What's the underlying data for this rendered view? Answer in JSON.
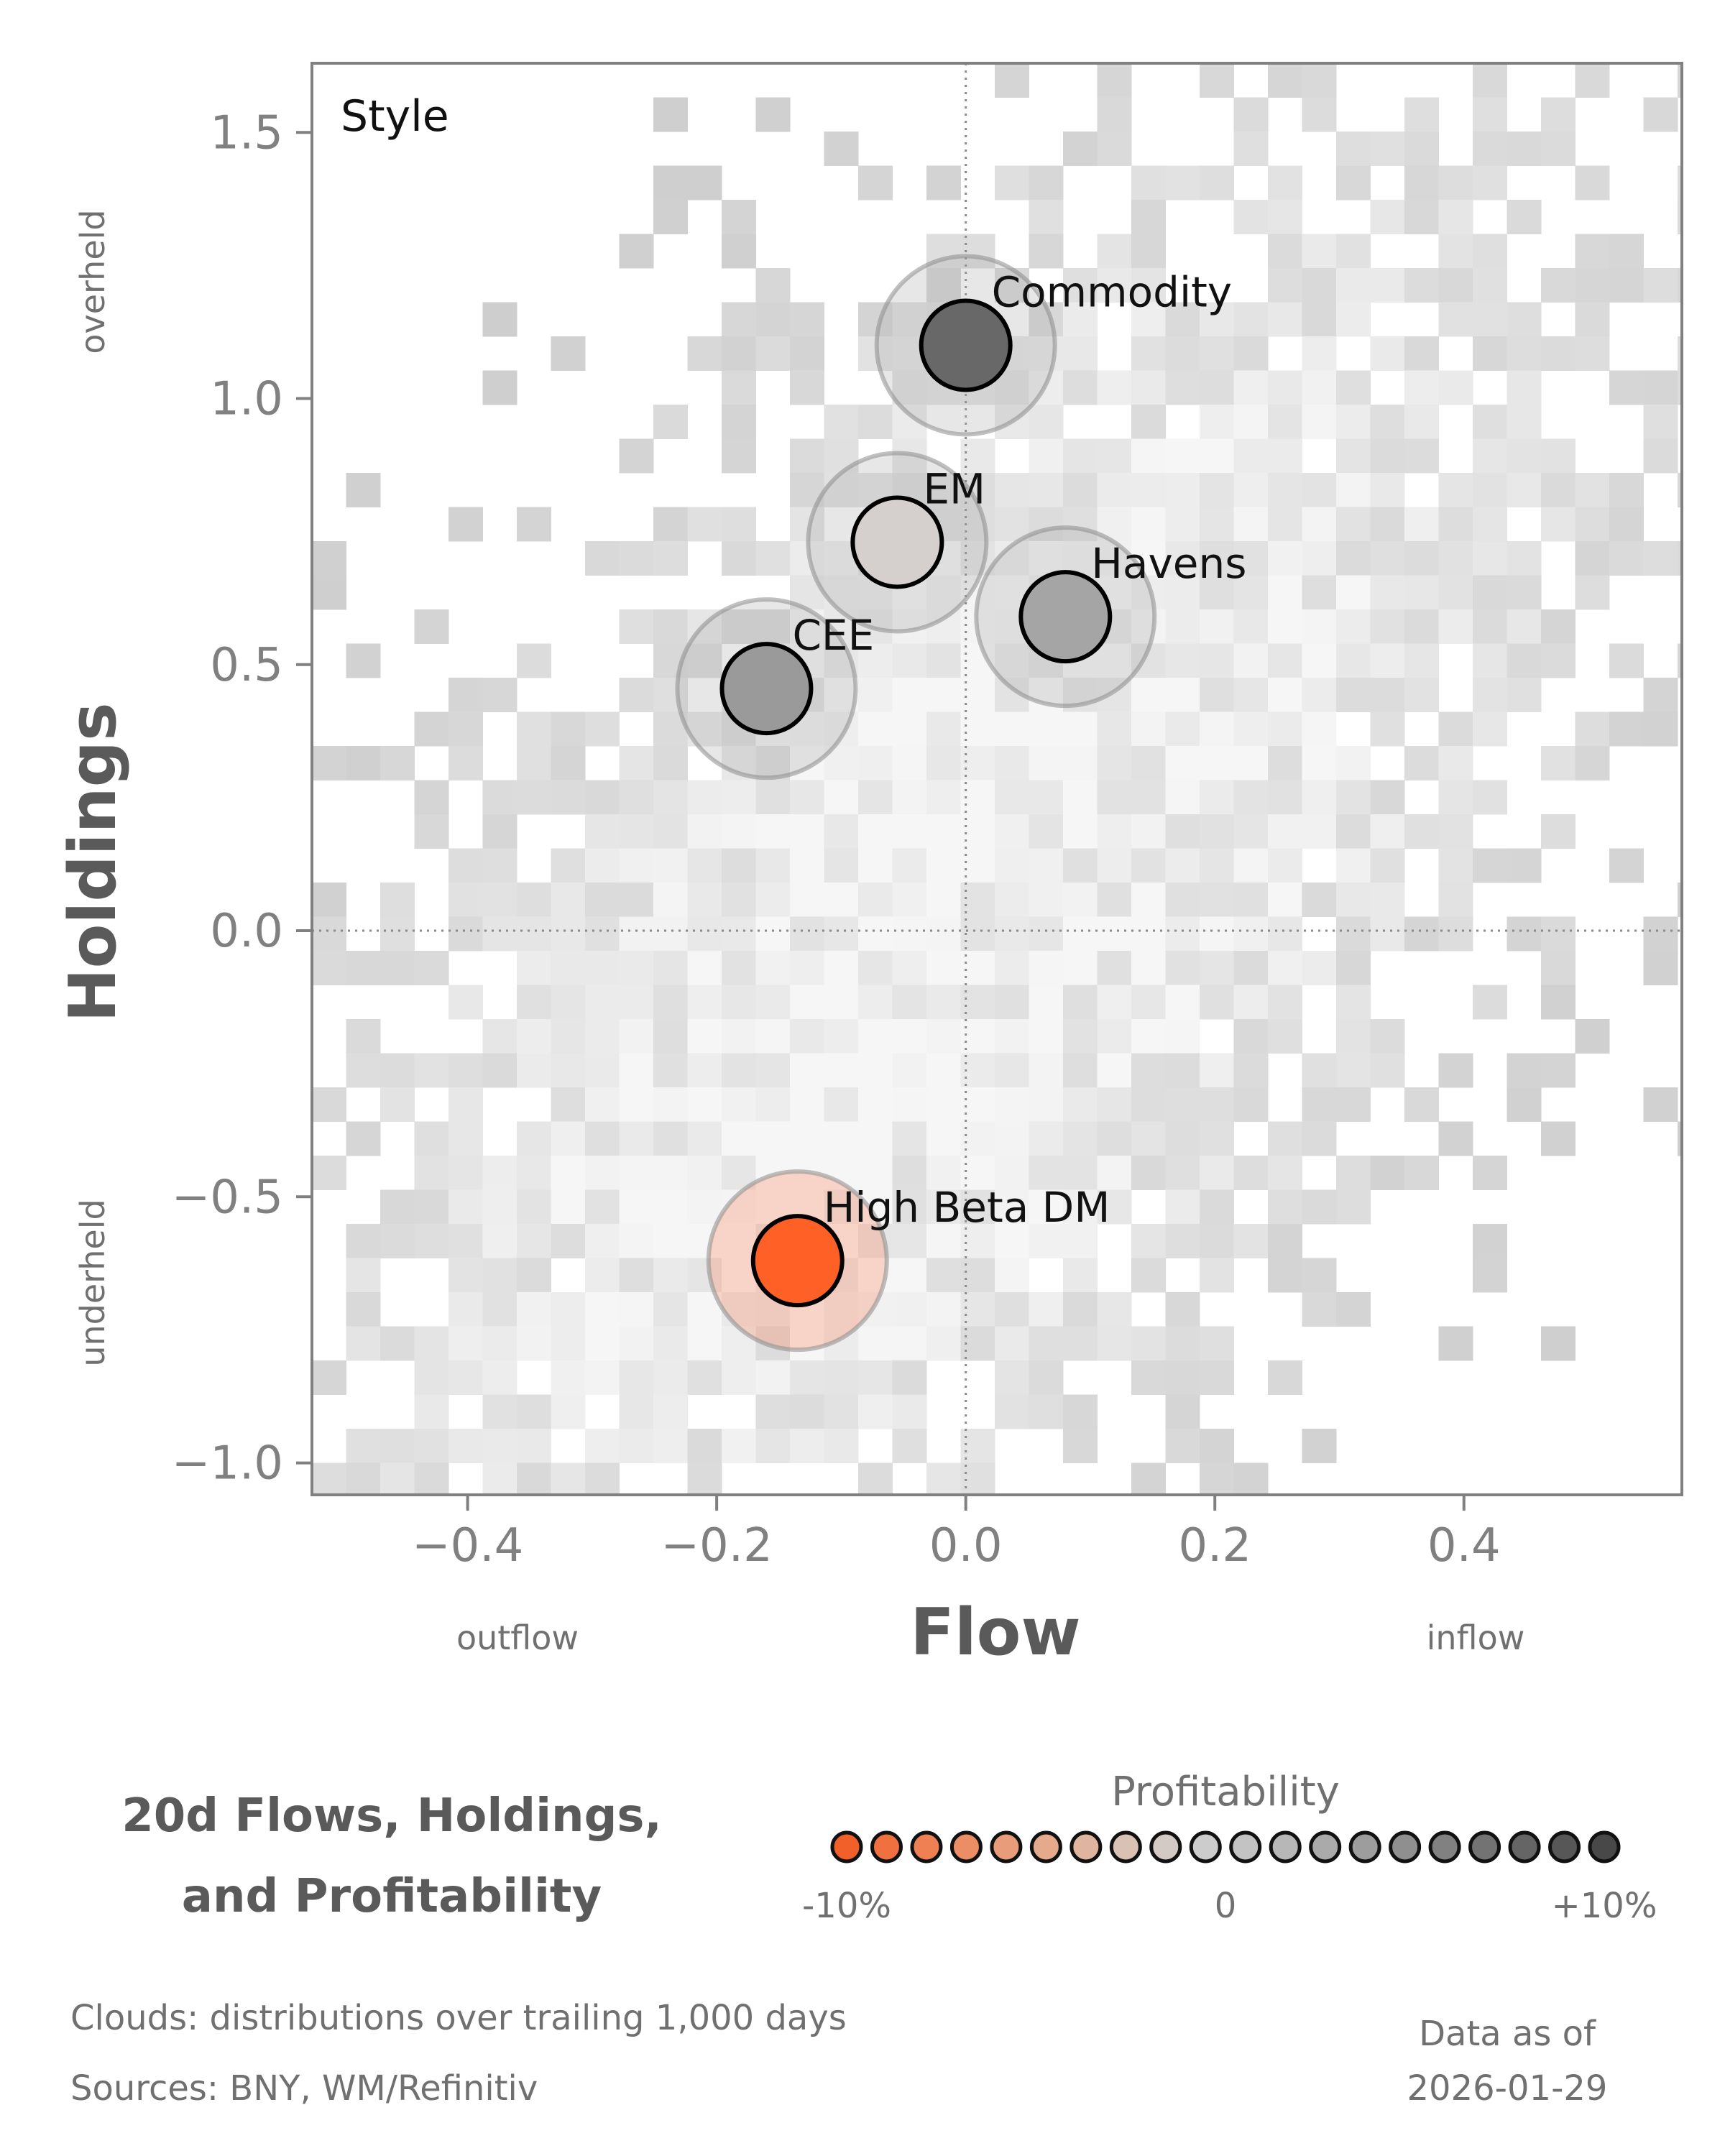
{
  "chart_data": {
    "type": "scatter",
    "panel_title": "Style",
    "xlabel": "Flow",
    "ylabel": "Holdings",
    "x_side_labels": {
      "low": "outflow",
      "high": "inflow"
    },
    "y_side_labels": {
      "low": "underheld",
      "high": "overheld"
    },
    "xlim": [
      -0.525,
      0.575
    ],
    "ylim": [
      -1.06,
      1.63
    ],
    "x_ticks": [
      -0.4,
      -0.2,
      0.0,
      0.2,
      0.4
    ],
    "x_tick_labels": [
      "−0.4",
      "−0.2",
      "0.0",
      "0.2",
      "0.4"
    ],
    "y_ticks": [
      -1.0,
      -0.5,
      0.0,
      0.5,
      1.0,
      1.5
    ],
    "y_tick_labels": [
      "−1.0",
      "−0.5",
      "0.0",
      "0.5",
      "1.0",
      "1.5"
    ],
    "grid": false,
    "zero_lines": true,
    "background": "gray density clouds of trailing 1,000 day distributions",
    "points": [
      {
        "name": "Commodity",
        "x": 0.0,
        "y": 1.1,
        "profitability": 8,
        "color": "#686868"
      },
      {
        "name": "EM",
        "x": -0.055,
        "y": 0.73,
        "profitability": -1,
        "color": "#d5d0cd"
      },
      {
        "name": "Havens",
        "x": 0.08,
        "y": 0.59,
        "profitability": 3,
        "color": "#a5a5a5"
      },
      {
        "name": "CEE",
        "x": -0.16,
        "y": 0.455,
        "profitability": 4,
        "color": "#9a9a9a"
      },
      {
        "name": "High Beta DM",
        "x": -0.135,
        "y": -0.62,
        "profitability": -10,
        "color": "#ff6026"
      }
    ],
    "legend": {
      "title": "Profitability",
      "tick_labels": [
        "-10%",
        "0",
        "+10%"
      ],
      "colors": [
        "#f2602a",
        "#f0703f",
        "#ee8053",
        "#eb8e66",
        "#e99c79",
        "#e5a98c",
        "#dfb59f",
        "#d9c1b4",
        "#d3cac5",
        "#cccccc",
        "#c3c3c3",
        "#b7b7b7",
        "#aaaaaa",
        "#9d9d9d",
        "#8f8f8f",
        "#818181",
        "#737373",
        "#656565",
        "#575757",
        "#484848"
      ]
    },
    "title": "20d Flows, Holdings, and Profitability",
    "title_lines": [
      "20d Flows, Holdings,",
      "and Profitability"
    ]
  },
  "footer": {
    "clouds_note": "Clouds:  distributions over trailing 1,000 days",
    "sources_note": "Sources:  BNY, WM/Refinitiv",
    "data_as_of_label": "Data as of",
    "data_as_of_date": "2026-01-29"
  }
}
